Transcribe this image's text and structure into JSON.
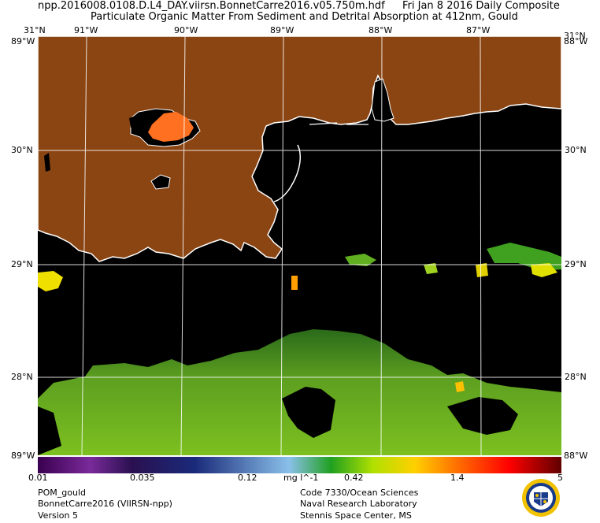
{
  "header": {
    "file_name": "npp.2016008.0108.D.L4_DAY.viirsn.BonnetCarre2016.v05.750m.hdf",
    "date_label": "Fri Jan  8 2016 Daily Composite",
    "product_title": "Particulate Organic Matter From Sediment and Detrital Absorption at 412nm, Gould"
  },
  "map": {
    "top_longitudes": [
      "91°W",
      "90°W",
      "89°W",
      "88°W",
      "87°W"
    ],
    "corner_top_left": "31°N",
    "corner_top_right": "31°N",
    "corner_left_lon": "89°W",
    "corner_right_lon": "88°W",
    "corner_bottom_left": "89°W",
    "corner_bottom_right": "88°W",
    "latitudes_left": [
      "30°N",
      "29°N",
      "28°N"
    ],
    "latitudes_right": [
      "30°N",
      "29°N",
      "28°N"
    ],
    "colors": {
      "land": "#8b4513",
      "water": "#000000",
      "coast": "#ffffff",
      "grid": "#ffffff"
    }
  },
  "colorbar": {
    "ticks": [
      "0.01",
      "0.035",
      "0.12",
      "mg l^-1",
      "0.42",
      "1.4",
      "5"
    ],
    "unit": "mg l^-1",
    "stops": [
      "#3a0050",
      "#7a2a9a",
      "#1a1a5a",
      "#1a4aa0",
      "#7ab8e8",
      "#20b040",
      "#c0e000",
      "#ffd000",
      "#ff7000",
      "#ff0000",
      "#600000"
    ]
  },
  "footer": {
    "left": [
      "POM_gould",
      "BonnetCarre2016 (VIIRSN-npp)",
      "Version 5"
    ],
    "right": [
      "Code 7330/Ocean Sciences",
      "Naval Research Laboratory",
      "Stennis Space Center, MS"
    ]
  }
}
